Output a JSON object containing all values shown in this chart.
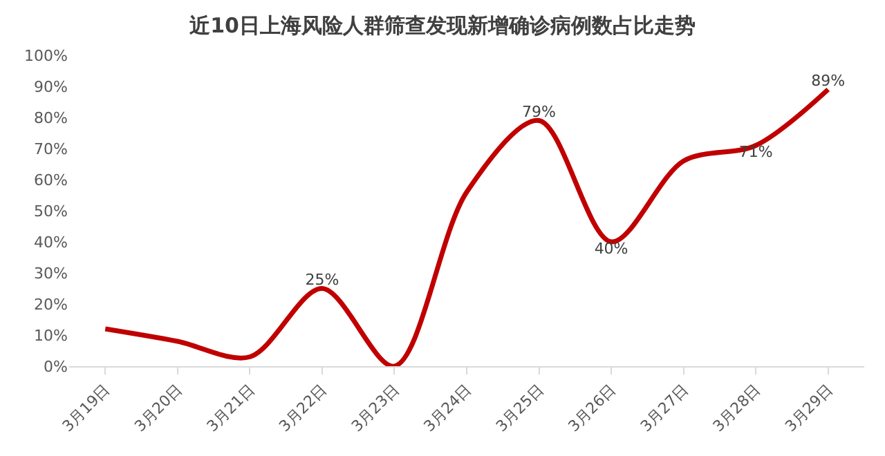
{
  "chart_data": {
    "type": "line",
    "title": "近10日上海风险人群筛查发现新增确诊病例数占比走势",
    "categories": [
      "3月19日",
      "3月20日",
      "3月21日",
      "3月22日",
      "3月23日",
      "3月24日",
      "3月25日",
      "3月26日",
      "3月27日",
      "3月28日",
      "3月29日"
    ],
    "series": [
      {
        "color": "#c00000",
        "values": [
          12,
          8,
          3,
          25,
          0,
          56,
          79,
          40,
          66,
          71,
          89
        ],
        "value_labels": [
          null,
          null,
          null,
          "25%",
          null,
          null,
          "79%",
          "40%",
          null,
          "71%",
          "89%"
        ]
      }
    ],
    "ylim": [
      0,
      100
    ],
    "yticks": [
      {
        "value": 0,
        "label": "0%"
      },
      {
        "value": 10,
        "label": "10%"
      },
      {
        "value": 20,
        "label": "20%"
      },
      {
        "value": 30,
        "label": "30%"
      },
      {
        "value": 40,
        "label": "40%"
      },
      {
        "value": 50,
        "label": "50%"
      },
      {
        "value": 60,
        "label": "60%"
      },
      {
        "value": 70,
        "label": "70%"
      },
      {
        "value": 80,
        "label": "80%"
      },
      {
        "value": 90,
        "label": "90%"
      },
      {
        "value": 100,
        "label": "100%"
      }
    ],
    "legend": false,
    "marker": "none",
    "line_style": "solid"
  }
}
